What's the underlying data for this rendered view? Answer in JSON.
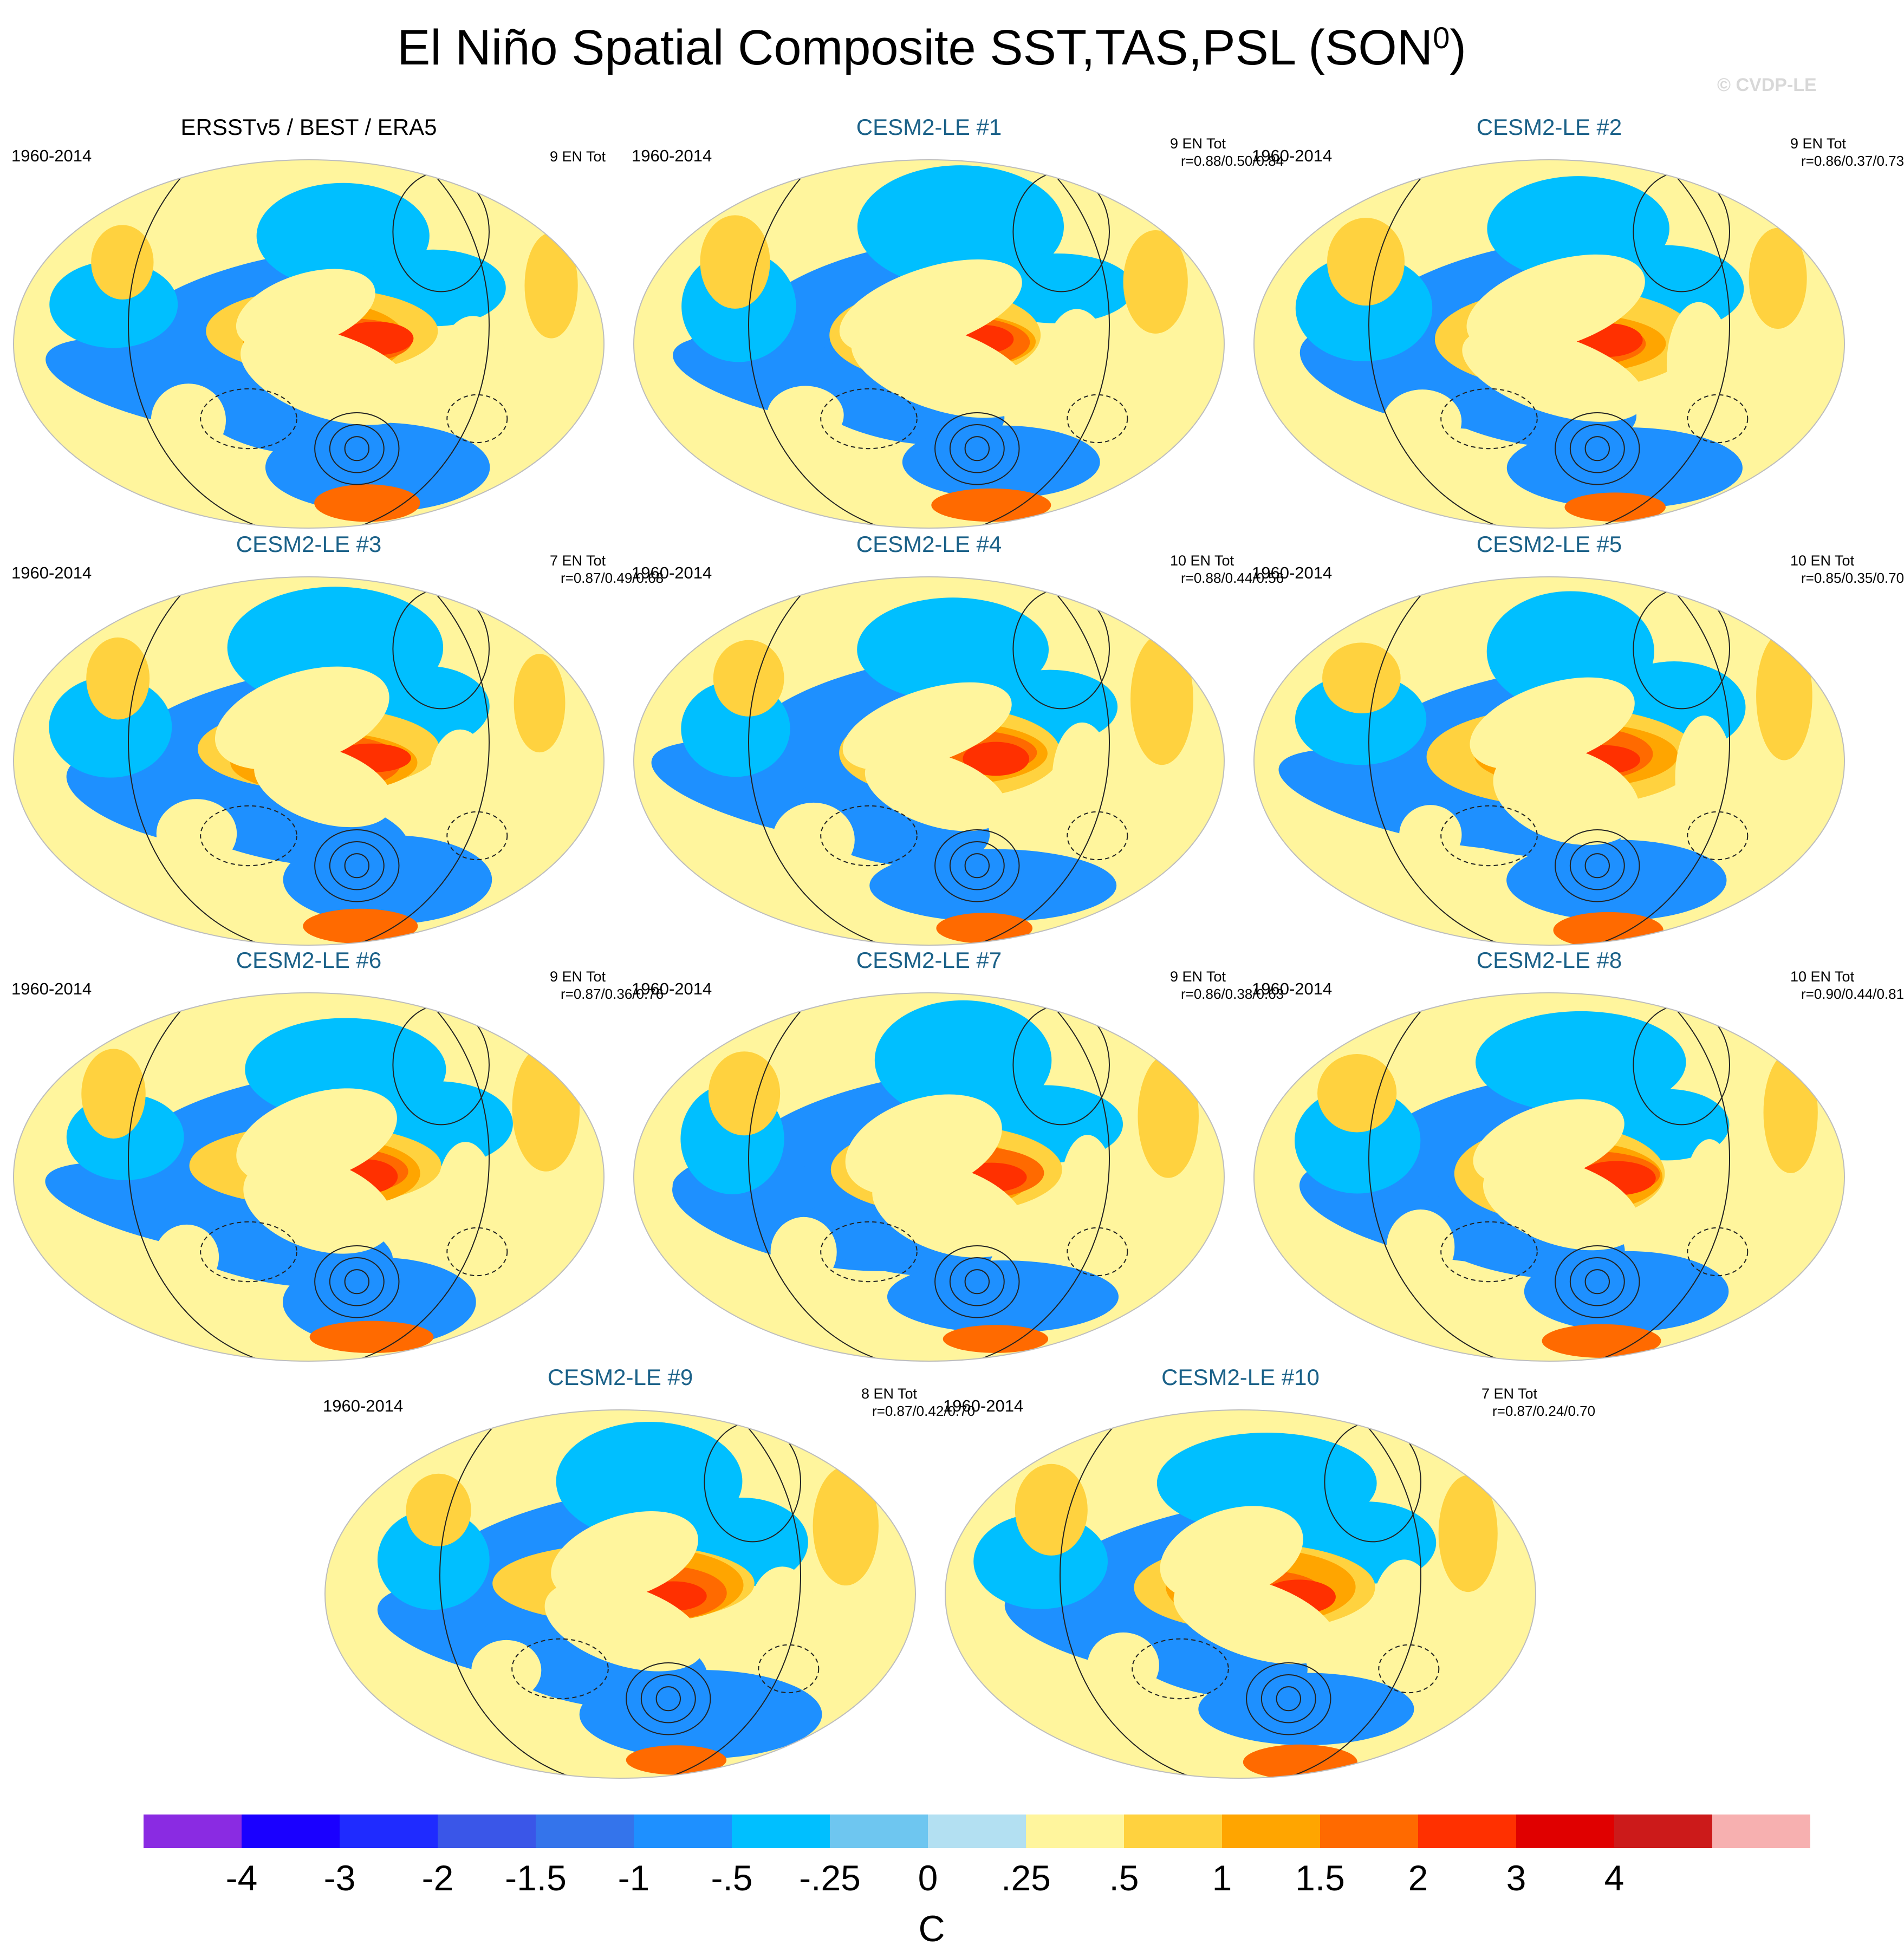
{
  "figure": {
    "title": "El Niño Spatial Composite SST,TAS,PSL (SON",
    "title_superscript": "0",
    "title_close": ")",
    "copyright": "© CVDP-LE"
  },
  "chart_data": {
    "type": "heatmap",
    "variables": "SST/TAS shaded (C), PSL contours",
    "panels": [
      {
        "title": "ERSSTv5 / BEST / ERA5",
        "period": "1960-2014",
        "count": "9 EN Tot",
        "r": ""
      },
      {
        "title": "CESM2-LE #1",
        "period": "1960-2014",
        "count": "9 EN Tot",
        "r": "r=0.88/0.50/0.84"
      },
      {
        "title": "CESM2-LE #2",
        "period": "1960-2014",
        "count": "9 EN Tot",
        "r": "r=0.86/0.37/0.73"
      },
      {
        "title": "CESM2-LE #3",
        "period": "1960-2014",
        "count": "7 EN Tot",
        "r": "r=0.87/0.49/0.68"
      },
      {
        "title": "CESM2-LE #4",
        "period": "1960-2014",
        "count": "10 EN Tot",
        "r": "r=0.88/0.44/0.56"
      },
      {
        "title": "CESM2-LE #5",
        "period": "1960-2014",
        "count": "10 EN Tot",
        "r": "r=0.85/0.35/0.70"
      },
      {
        "title": "CESM2-LE #6",
        "period": "1960-2014",
        "count": "9 EN Tot",
        "r": "r=0.87/0.36/0.76"
      },
      {
        "title": "CESM2-LE #7",
        "period": "1960-2014",
        "count": "9 EN Tot",
        "r": "r=0.86/0.38/0.63"
      },
      {
        "title": "CESM2-LE #8",
        "period": "1960-2014",
        "count": "10 EN Tot",
        "r": "r=0.90/0.44/0.81"
      },
      {
        "title": "CESM2-LE #9",
        "period": "1960-2014",
        "count": "8 EN Tot",
        "r": "r=0.87/0.42/0.70"
      },
      {
        "title": "CESM2-LE #10",
        "period": "1960-2014",
        "count": "7 EN Tot",
        "r": "r=0.87/0.24/0.70"
      }
    ],
    "colorbar": {
      "labels": [
        "-4",
        "-3",
        "-2",
        "-1.5",
        "-1",
        "-.5",
        "-.25",
        "0",
        ".25",
        ".5",
        "1",
        "1.5",
        "2",
        "3",
        "4"
      ],
      "colors": [
        "#8a2be2",
        "#1a00ff",
        "#1f2bff",
        "#3a56e8",
        "#3474eb",
        "#1e90ff",
        "#00bfff",
        "#6ec6f0",
        "#b3e0f2",
        "#fff59d",
        "#ffd23f",
        "#ffa500",
        "#ff6a00",
        "#ff3000",
        "#e00000",
        "#cc1a1a",
        "#f7b0b0"
      ],
      "unit": "C"
    }
  }
}
